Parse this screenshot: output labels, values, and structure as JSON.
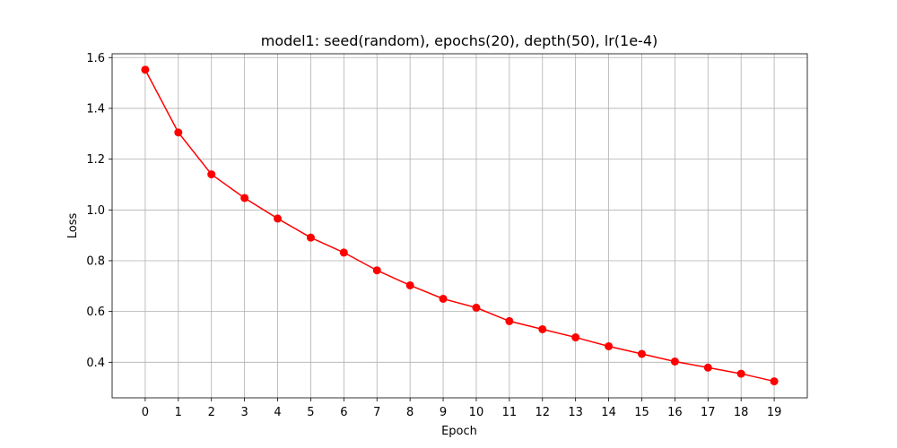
{
  "chart_data": {
    "type": "line",
    "title": "model1: seed(random), epochs(20), depth(50), lr(1e-4)",
    "xlabel": "Epoch",
    "ylabel": "Loss",
    "x": [
      0,
      1,
      2,
      3,
      4,
      5,
      6,
      7,
      8,
      9,
      10,
      11,
      12,
      13,
      14,
      15,
      16,
      17,
      18,
      19
    ],
    "series": [
      {
        "values": [
          1.552,
          1.305,
          1.14,
          1.047,
          0.966,
          0.891,
          0.832,
          0.762,
          0.703,
          0.65,
          0.615,
          0.562,
          0.53,
          0.498,
          0.463,
          0.433,
          0.403,
          0.379,
          0.355,
          0.325
        ],
        "color": "#ff0000",
        "marker": "circle"
      }
    ],
    "xlim": [
      -1,
      20
    ],
    "ylim": [
      0.26,
      1.615
    ],
    "xticks": [
      "0",
      "1",
      "2",
      "3",
      "4",
      "5",
      "6",
      "7",
      "8",
      "9",
      "10",
      "11",
      "12",
      "13",
      "14",
      "15",
      "16",
      "17",
      "18",
      "19"
    ],
    "yticks": [
      "0.4",
      "0.6",
      "0.8",
      "1.0",
      "1.2",
      "1.4",
      "1.6"
    ],
    "grid": true,
    "legend": "none"
  }
}
